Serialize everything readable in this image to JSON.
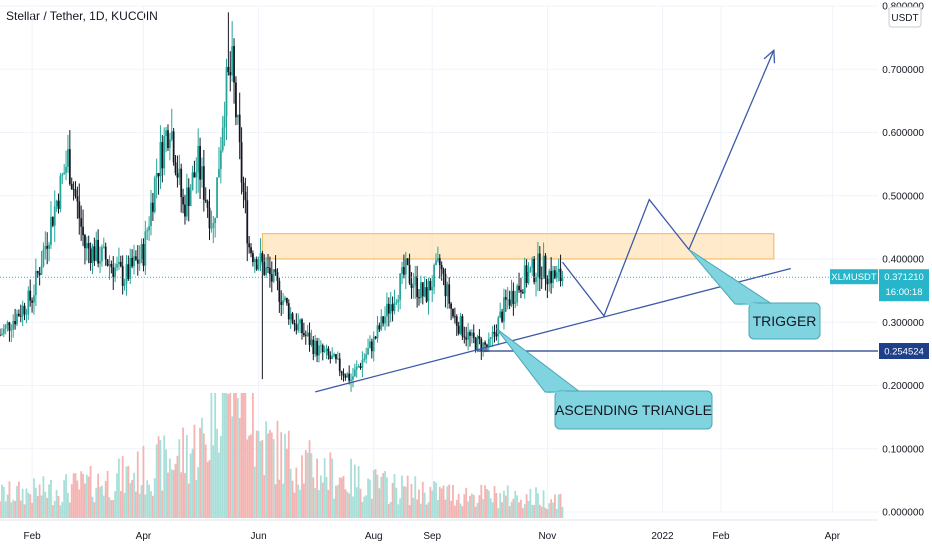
{
  "header": {
    "title": "Stellar / Tether, 1D, KUCOIN",
    "currency_badge": "USDT"
  },
  "colors": {
    "up": "#26a69a",
    "down": "#131722",
    "projection": "#3d5aa8",
    "resistance_zone": "#ffd8a0",
    "callout_fill": "#7fd4e0",
    "price_tag": "#26b5c9",
    "level_tag": "#1e3f8a"
  },
  "chart_data": {
    "type": "candlestick",
    "ylim": [
      0,
      0.8
    ],
    "y_ticks": [
      "0.800000",
      "0.700000",
      "0.600000",
      "0.500000",
      "0.400000",
      "0.300000",
      "0.200000",
      "0.100000",
      "0.000000"
    ],
    "y_tick_values": [
      0.8,
      0.7,
      0.6,
      0.5,
      0.4,
      0.3,
      0.2,
      0.1,
      0.0
    ],
    "x_ticks": [
      "Feb",
      "Apr",
      "Jun",
      "Aug",
      "Sep",
      "Nov",
      "2022",
      "Feb",
      "Apr"
    ],
    "x_tick_dates": [
      "2021-02-01",
      "2021-04-01",
      "2021-06-01",
      "2021-08-01",
      "2021-09-01",
      "2021-11-01",
      "2022-01-01",
      "2022-02-01",
      "2022-04-01"
    ],
    "x_range": [
      "2021-01-15",
      "2022-04-22"
    ],
    "price_path": [
      [
        "2021-01-15",
        0.28
      ],
      [
        "2021-02-01",
        0.34
      ],
      [
        "2021-02-12",
        0.47
      ],
      [
        "2021-02-20",
        0.56
      ],
      [
        "2021-03-01",
        0.42
      ],
      [
        "2021-03-12",
        0.4
      ],
      [
        "2021-03-22",
        0.37
      ],
      [
        "2021-04-01",
        0.41
      ],
      [
        "2021-04-08",
        0.54
      ],
      [
        "2021-04-15",
        0.62
      ],
      [
        "2021-04-22",
        0.48
      ],
      [
        "2021-04-30",
        0.55
      ],
      [
        "2021-05-08",
        0.45
      ],
      [
        "2021-05-14",
        0.66
      ],
      [
        "2021-05-18",
        0.7
      ],
      [
        "2021-05-23",
        0.53
      ],
      [
        "2021-05-27",
        0.42
      ],
      [
        "2021-06-03",
        0.39
      ],
      [
        "2021-06-10",
        0.36
      ],
      [
        "2021-06-20",
        0.3
      ],
      [
        "2021-07-01",
        0.26
      ],
      [
        "2021-07-10",
        0.24
      ],
      [
        "2021-07-20",
        0.21
      ],
      [
        "2021-08-01",
        0.27
      ],
      [
        "2021-08-10",
        0.33
      ],
      [
        "2021-08-18",
        0.38
      ],
      [
        "2021-08-28",
        0.34
      ],
      [
        "2021-09-05",
        0.39
      ],
      [
        "2021-09-12",
        0.31
      ],
      [
        "2021-09-22",
        0.27
      ],
      [
        "2021-10-01",
        0.26
      ],
      [
        "2021-10-10",
        0.33
      ],
      [
        "2021-10-20",
        0.37
      ],
      [
        "2021-10-28",
        0.39
      ],
      [
        "2021-11-05",
        0.37
      ],
      [
        "2021-11-09",
        0.3712
      ]
    ],
    "wick_extremes": [
      [
        "2021-05-16",
        0.79
      ],
      [
        "2021-06-03",
        0.21
      ],
      [
        "2021-07-20",
        0.19
      ]
    ],
    "current_price": "0.371210",
    "current_price_value": 0.37121,
    "symbol_tag": "XLMUSDT",
    "countdown": "16:00:18",
    "horizontal_level": "0.254524",
    "horizontal_level_value": 0.254524,
    "resistance_zone": {
      "from": "2021-06-03",
      "to": "2022-03-01",
      "low": 0.4,
      "high": 0.44
    },
    "support_trendline": [
      [
        "2021-07-01",
        0.19
      ],
      [
        "2022-03-10",
        0.385
      ]
    ],
    "projection_path": [
      [
        "2021-11-09",
        0.395
      ],
      [
        "2021-12-01",
        0.31
      ],
      [
        "2021-12-25",
        0.494
      ],
      [
        "2022-01-15",
        0.415
      ],
      [
        "2022-03-01",
        0.73
      ]
    ],
    "annotations": [
      {
        "text": "ASCENDING TRIANGLE",
        "anchor": [
          "2021-10-05",
          0.29
        ]
      },
      {
        "text": "TRIGGER",
        "anchor": [
          "2022-01-15",
          0.415
        ]
      }
    ],
    "volume_peak_date": "2021-05-18"
  }
}
